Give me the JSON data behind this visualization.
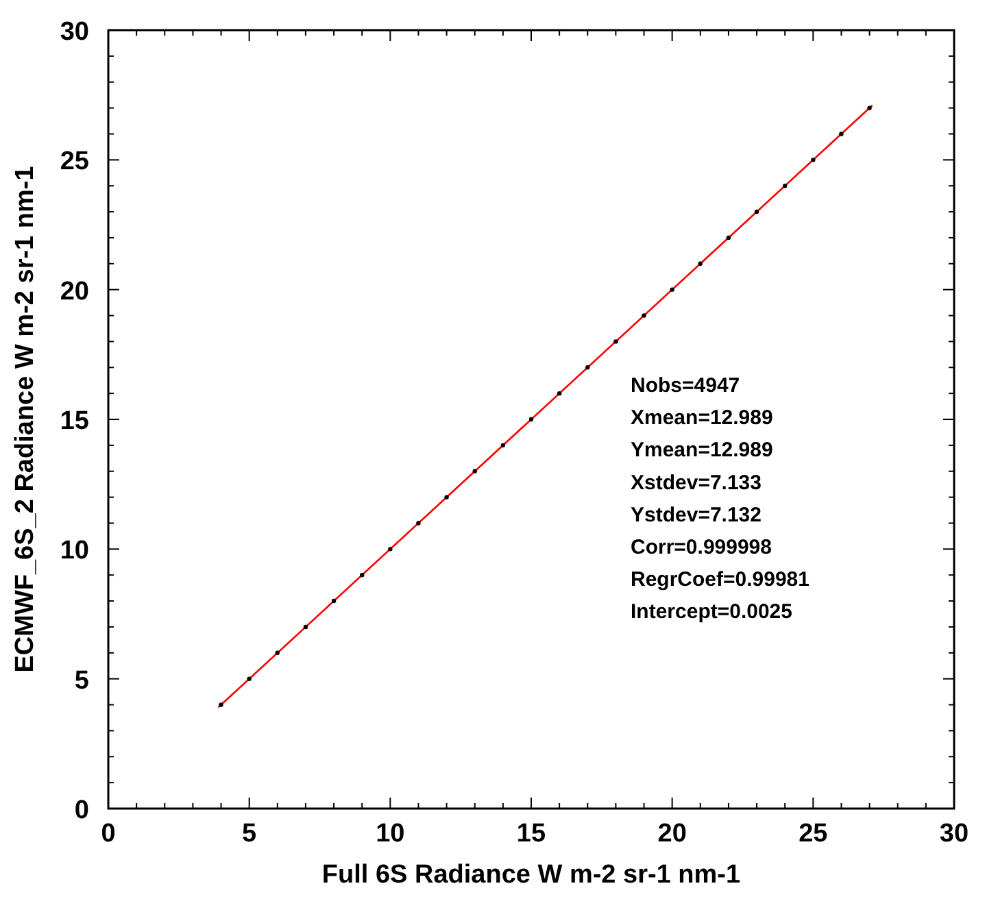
{
  "chart_data": {
    "type": "scatter",
    "xlabel": "Full 6S Radiance  W m-2 sr-1 nm-1",
    "ylabel": "ECMWF_6S_2 Radiance  W m-2 sr-1 nm-1",
    "xlim": [
      0,
      30
    ],
    "ylim": [
      0,
      30
    ],
    "xticks": [
      0,
      {
        "value": 1,
        "label": null
      },
      {
        "value": 2,
        "label": null
      },
      {
        "value": 3,
        "label": null
      },
      {
        "value": 4,
        "label": null
      },
      5,
      {
        "value": 6,
        "label": null
      },
      {
        "value": 7,
        "label": null
      },
      {
        "value": 8,
        "label": null
      },
      {
        "value": 9,
        "label": null
      },
      10,
      {
        "value": 11,
        "label": null
      },
      {
        "value": 12,
        "label": null
      },
      {
        "value": 13,
        "label": null
      },
      {
        "value": 14,
        "label": null
      },
      15,
      {
        "value": 16,
        "label": null
      },
      {
        "value": 17,
        "label": null
      },
      {
        "value": 18,
        "label": null
      },
      {
        "value": 19,
        "label": null
      },
      20,
      {
        "value": 21,
        "label": null
      },
      {
        "value": 22,
        "label": null
      },
      {
        "value": 23,
        "label": null
      },
      {
        "value": 24,
        "label": null
      },
      25,
      {
        "value": 26,
        "label": null
      },
      {
        "value": 27,
        "label": null
      },
      {
        "value": 28,
        "label": null
      },
      {
        "value": 29,
        "label": null
      },
      30
    ],
    "yticks": [
      0,
      {
        "value": 1,
        "label": null
      },
      {
        "value": 2,
        "label": null
      },
      {
        "value": 3,
        "label": null
      },
      {
        "value": 4,
        "label": null
      },
      5,
      {
        "value": 6,
        "label": null
      },
      {
        "value": 7,
        "label": null
      },
      {
        "value": 8,
        "label": null
      },
      {
        "value": 9,
        "label": null
      },
      10,
      {
        "value": 11,
        "label": null
      },
      {
        "value": 12,
        "label": null
      },
      {
        "value": 13,
        "label": null
      },
      {
        "value": 14,
        "label": null
      },
      15,
      {
        "value": 16,
        "label": null
      },
      {
        "value": 17,
        "label": null
      },
      {
        "value": 18,
        "label": null
      },
      {
        "value": 19,
        "label": null
      },
      20,
      {
        "value": 21,
        "label": null
      },
      {
        "value": 22,
        "label": null
      },
      {
        "value": 23,
        "label": null
      },
      {
        "value": 24,
        "label": null
      },
      25,
      {
        "value": 26,
        "label": null
      },
      {
        "value": 27,
        "label": null
      },
      {
        "value": 28,
        "label": null
      },
      {
        "value": 29,
        "label": null
      },
      30
    ],
    "grid": false,
    "marker": "circle",
    "series": [
      {
        "type": "scatter",
        "color": "#000000",
        "x": [
          4,
          5,
          6,
          7,
          8,
          9,
          10,
          11,
          12,
          13,
          14,
          15,
          16,
          17,
          18,
          19,
          20,
          21,
          22,
          23,
          24,
          25,
          26,
          27
        ],
        "values": [
          4,
          5,
          6,
          7,
          8,
          9,
          10,
          11,
          12,
          13,
          14,
          15,
          16,
          17,
          18,
          19,
          20,
          21,
          22,
          23,
          24,
          25,
          26,
          27
        ]
      },
      {
        "type": "line",
        "marker": "none",
        "color": "#ff0000",
        "x": [
          3.9,
          27.1
        ],
        "values": [
          3.9,
          27.1
        ]
      }
    ],
    "annotations": [
      "Nobs=4947",
      "Xmean=12.989",
      "Ymean=12.989",
      "Xstdev=7.133",
      "Ystdev=7.132",
      "Corr=0.999998",
      "RegrCoef=0.99981",
      "Intercept=0.0025"
    ]
  }
}
